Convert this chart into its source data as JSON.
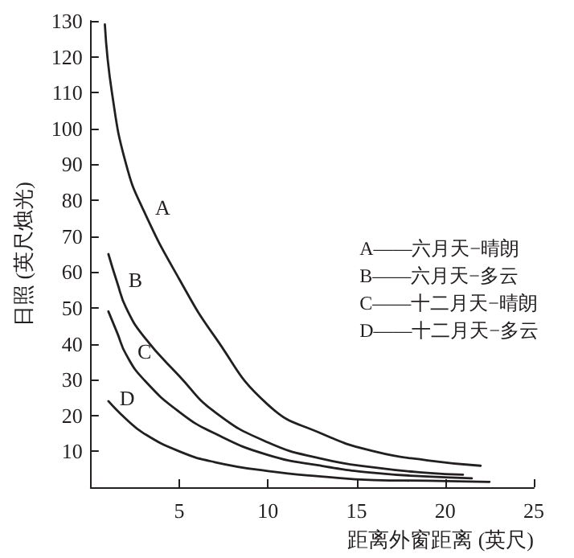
{
  "chart_data": {
    "type": "line",
    "xlabel": "距离外窗距离 (英尺)",
    "ylabel": "日照 (英尺烛光)",
    "xlim": [
      0,
      25
    ],
    "xticks": [
      5,
      10,
      15,
      20,
      25
    ],
    "ylim": [
      0,
      130
    ],
    "yticks": [
      10,
      20,
      30,
      40,
      50,
      60,
      70,
      80,
      90,
      100,
      110,
      120,
      130
    ],
    "grid": false,
    "marker": "none",
    "line_style": "solid",
    "series": [
      {
        "color": "#231f20",
        "x": [
          0.8,
          1.2,
          2,
          3,
          5,
          7,
          10,
          13,
          16,
          19,
          22
        ],
        "values": [
          129,
          110,
          90,
          77,
          58,
          42,
          23,
          15,
          10,
          7.5,
          6
        ]
      },
      {
        "color": "#231f20",
        "x": [
          1,
          1.5,
          2,
          3,
          5,
          7,
          10,
          13,
          16,
          19,
          21
        ],
        "values": [
          65,
          57,
          50,
          42,
          31,
          21,
          12.5,
          8,
          5.5,
          4,
          3.5
        ]
      },
      {
        "color": "#231f20",
        "x": [
          1,
          1.5,
          2,
          3,
          5,
          7,
          10,
          13,
          16,
          19,
          21.5
        ],
        "values": [
          49,
          43,
          37,
          30,
          21,
          15,
          9,
          6,
          4,
          3,
          2.5
        ]
      },
      {
        "color": "#231f20",
        "x": [
          1,
          2,
          3,
          5,
          7,
          10,
          13,
          16,
          19,
          22.5
        ],
        "values": [
          24,
          19,
          15,
          10,
          7,
          4.5,
          3,
          2,
          1.8,
          1.5
        ]
      }
    ],
    "annotations": [
      {
        "text": "A",
        "x": 3,
        "y": 77
      },
      {
        "text": "B",
        "x": 1.5,
        "y": 57
      },
      {
        "text": "C",
        "x": 2,
        "y": 37
      },
      {
        "text": "D",
        "x": 1,
        "y": 24
      },
      "A——六月天−晴朗",
      "B——六月天−多云",
      "C——十二月天−晴朗",
      "D——十二月天−多云"
    ]
  }
}
